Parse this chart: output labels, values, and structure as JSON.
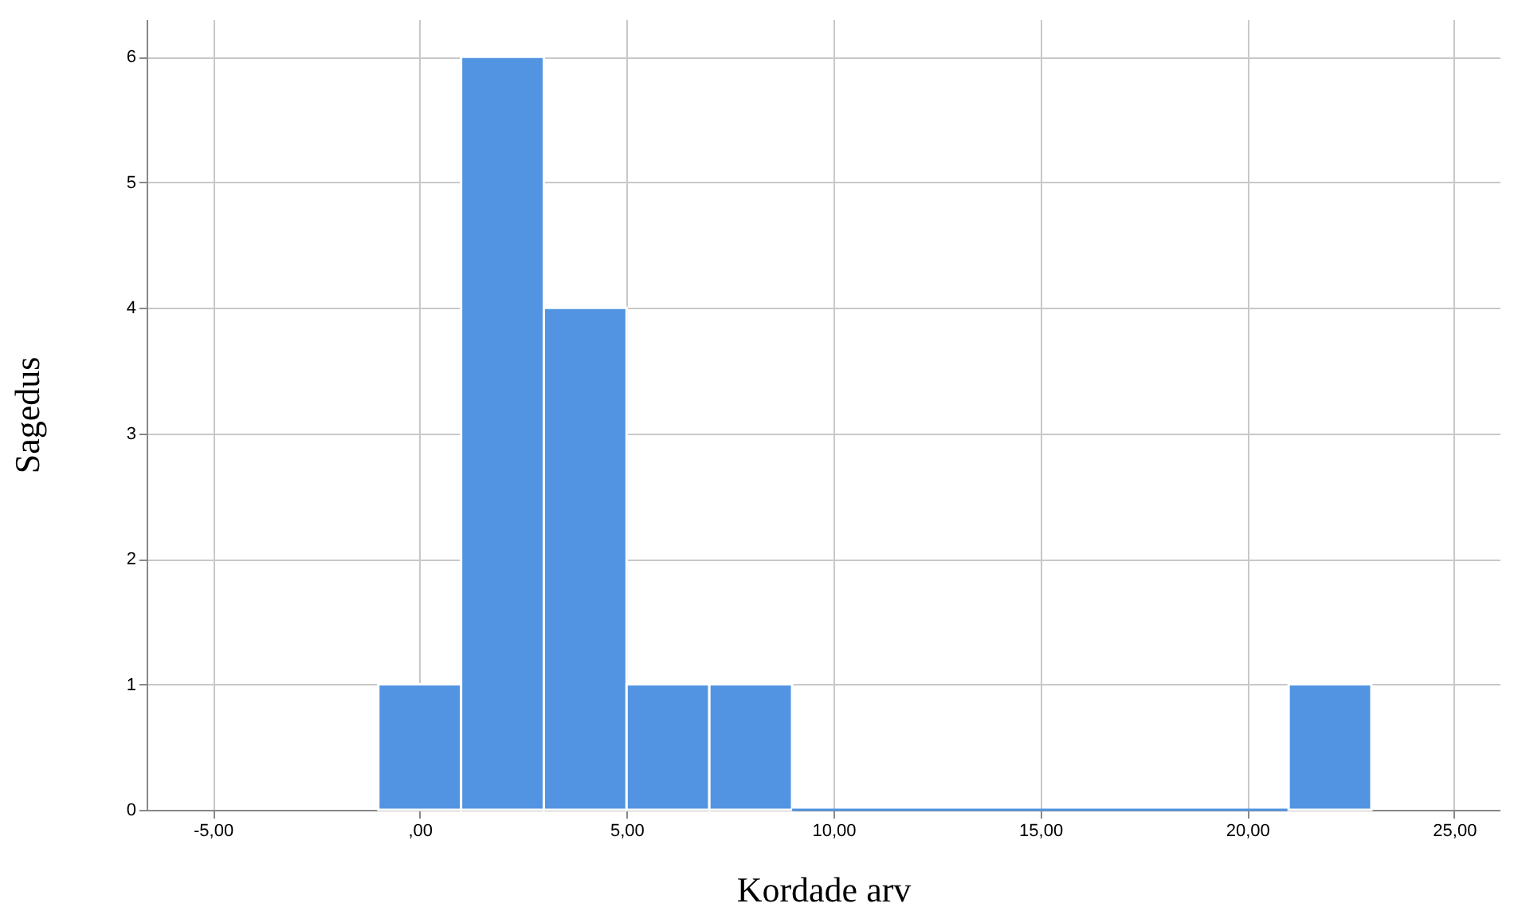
{
  "chart_data": {
    "type": "histogram",
    "xlabel": "Kordade arv",
    "ylabel": "Sagedus",
    "color": "#5294e2",
    "bins": [
      -1,
      1,
      3,
      5,
      7,
      9,
      21,
      23
    ],
    "values": [
      1,
      6,
      4,
      1,
      1,
      0,
      1
    ],
    "xlim": [
      -6.6,
      26.1
    ],
    "ylim": [
      0,
      6.3
    ],
    "xticks": [
      {
        "value": -5,
        "label": "-5,00"
      },
      {
        "value": 0,
        "label": ",00"
      },
      {
        "value": 5,
        "label": "5,00"
      },
      {
        "value": 10,
        "label": "10,00"
      },
      {
        "value": 15,
        "label": "15,00"
      },
      {
        "value": 20,
        "label": "20,00"
      },
      {
        "value": 25,
        "label": "25,00"
      }
    ],
    "yticks": [
      0,
      1,
      2,
      3,
      4,
      5,
      6
    ],
    "grid": true
  }
}
